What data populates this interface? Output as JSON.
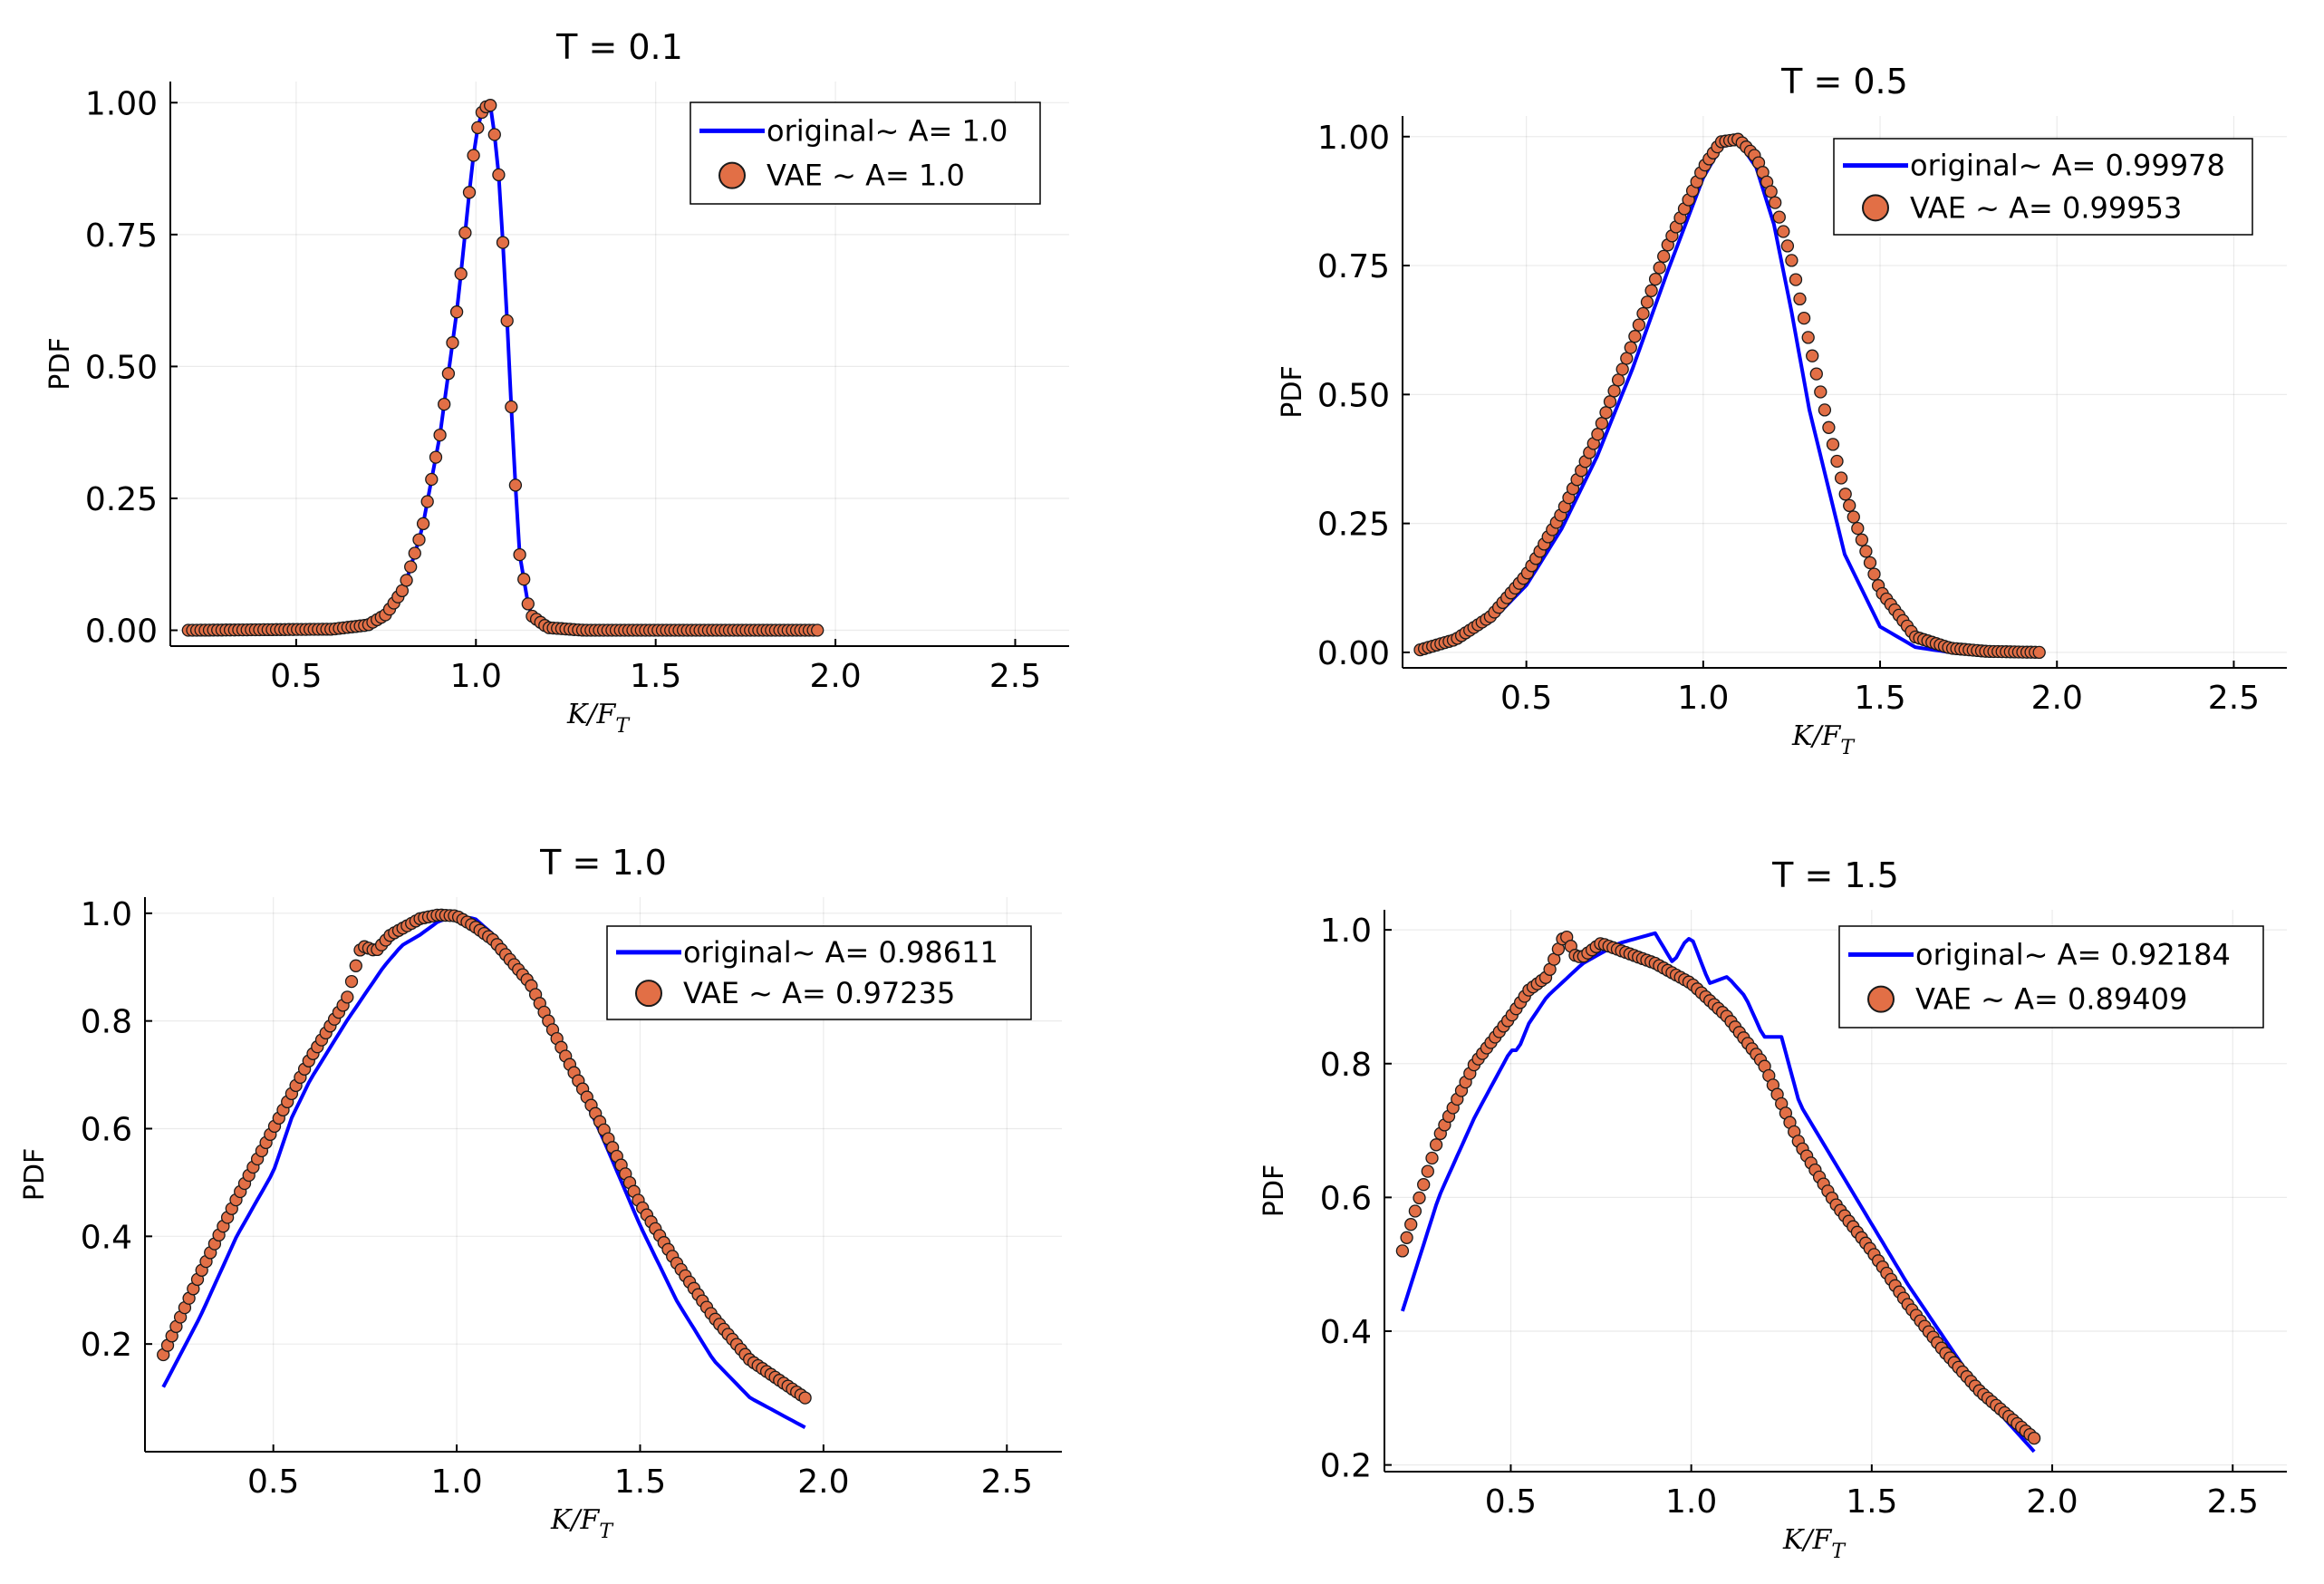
{
  "colors": {
    "original": "#0000ff",
    "vae": "#e26f46",
    "vae_edge": "#1a1a1a"
  },
  "chart_data": [
    {
      "type": "line",
      "title": "T = 0.1",
      "xlabel": "K/F",
      "xlabel_sub": "T",
      "ylabel": "PDF",
      "xlim": [
        0.15,
        2.65
      ],
      "ylim": [
        -0.03,
        1.04
      ],
      "xticks": [
        0.5,
        1.0,
        1.5,
        2.0,
        2.5
      ],
      "xtick_labels": [
        "0.5",
        "1.0",
        "1.5",
        "2.0",
        "2.5"
      ],
      "yticks": [
        0.0,
        0.25,
        0.5,
        0.75,
        1.0
      ],
      "ytick_labels": [
        "0.00",
        "0.25",
        "0.50",
        "0.75",
        "1.00"
      ],
      "legend_position": "top-right",
      "series": [
        {
          "name": "original~ A= 1.0",
          "kind": "line",
          "x": [
            0.2,
            0.6,
            0.7,
            0.75,
            0.8,
            0.85,
            0.9,
            0.95,
            0.98,
            1.0,
            1.02,
            1.04,
            1.06,
            1.08,
            1.1,
            1.12,
            1.15,
            1.2,
            1.3,
            1.95
          ],
          "y": [
            0.0,
            0.002,
            0.01,
            0.03,
            0.08,
            0.19,
            0.37,
            0.62,
            0.82,
            0.94,
            0.99,
            0.995,
            0.9,
            0.68,
            0.4,
            0.15,
            0.03,
            0.005,
            0.0,
            0.0
          ]
        },
        {
          "name": "VAE ~ A= 1.0",
          "kind": "scatter",
          "x": [
            0.2,
            0.6,
            0.7,
            0.75,
            0.8,
            0.85,
            0.9,
            0.95,
            0.98,
            1.0,
            1.02,
            1.04,
            1.06,
            1.08,
            1.1,
            1.12,
            1.15,
            1.2,
            1.3,
            1.95
          ],
          "y": [
            0.0,
            0.002,
            0.01,
            0.03,
            0.08,
            0.19,
            0.37,
            0.62,
            0.82,
            0.94,
            0.99,
            0.995,
            0.9,
            0.68,
            0.4,
            0.15,
            0.03,
            0.005,
            0.0,
            0.0
          ]
        }
      ]
    },
    {
      "type": "line",
      "title": "T = 0.5",
      "xlabel": "K/F",
      "xlabel_sub": "T",
      "ylabel": "PDF",
      "xlim": [
        0.15,
        2.65
      ],
      "ylim": [
        -0.03,
        1.04
      ],
      "xticks": [
        0.5,
        1.0,
        1.5,
        2.0,
        2.5
      ],
      "xtick_labels": [
        "0.5",
        "1.0",
        "1.5",
        "2.0",
        "2.5"
      ],
      "yticks": [
        0.0,
        0.25,
        0.5,
        0.75,
        1.0
      ],
      "ytick_labels": [
        "0.00",
        "0.25",
        "0.50",
        "0.75",
        "1.00"
      ],
      "legend_position": "top-right",
      "series": [
        {
          "name": "original~ A= 0.99978",
          "kind": "line",
          "x": [
            0.2,
            0.3,
            0.4,
            0.5,
            0.6,
            0.7,
            0.8,
            0.9,
            1.0,
            1.05,
            1.1,
            1.15,
            1.2,
            1.25,
            1.3,
            1.4,
            1.5,
            1.6,
            1.7
          ],
          "y": [
            0.005,
            0.02,
            0.06,
            0.13,
            0.24,
            0.38,
            0.55,
            0.74,
            0.92,
            0.98,
            0.99,
            0.94,
            0.83,
            0.66,
            0.47,
            0.19,
            0.05,
            0.01,
            0.0
          ]
        },
        {
          "name": "VAE ~ A= 0.99953",
          "kind": "scatter",
          "x": [
            0.2,
            0.3,
            0.4,
            0.5,
            0.6,
            0.7,
            0.8,
            0.9,
            1.0,
            1.05,
            1.1,
            1.15,
            1.2,
            1.25,
            1.3,
            1.35,
            1.4,
            1.5,
            1.6,
            1.7,
            1.8,
            1.95
          ],
          "y": [
            0.005,
            0.025,
            0.07,
            0.15,
            0.27,
            0.42,
            0.6,
            0.79,
            0.94,
            0.99,
            0.995,
            0.96,
            0.88,
            0.76,
            0.6,
            0.45,
            0.31,
            0.12,
            0.03,
            0.008,
            0.002,
            0.0
          ]
        }
      ]
    },
    {
      "type": "line",
      "title": "T = 1.0",
      "xlabel": "K/F",
      "xlabel_sub": "T",
      "ylabel": "PDF",
      "xlim": [
        0.15,
        2.65
      ],
      "ylim": [
        0.0,
        1.03
      ],
      "xticks": [
        0.5,
        1.0,
        1.5,
        2.0,
        2.5
      ],
      "xtick_labels": [
        "0.5",
        "1.0",
        "1.5",
        "2.0",
        "2.5"
      ],
      "yticks": [
        0.2,
        0.4,
        0.6,
        0.8,
        1.0
      ],
      "ytick_labels": [
        "0.2",
        "0.4",
        "0.6",
        "0.8",
        "1.0"
      ],
      "legend_position": "top-right",
      "series": [
        {
          "name": "original~ A= 0.98611",
          "kind": "line",
          "x": [
            0.2,
            0.3,
            0.4,
            0.5,
            0.55,
            0.6,
            0.7,
            0.8,
            0.85,
            0.9,
            0.95,
            1.0,
            1.05,
            1.1,
            1.15,
            1.2,
            1.3,
            1.4,
            1.5,
            1.6,
            1.7,
            1.8,
            1.95
          ],
          "y": [
            0.12,
            0.25,
            0.4,
            0.52,
            0.62,
            0.69,
            0.8,
            0.9,
            0.94,
            0.96,
            0.985,
            0.995,
            0.99,
            0.96,
            0.92,
            0.86,
            0.73,
            0.58,
            0.42,
            0.28,
            0.17,
            0.1,
            0.045
          ]
        },
        {
          "name": "VAE ~ A= 0.97235",
          "kind": "scatter",
          "x": [
            0.2,
            0.3,
            0.4,
            0.5,
            0.6,
            0.7,
            0.74,
            0.78,
            0.82,
            0.9,
            0.95,
            1.0,
            1.05,
            1.1,
            1.2,
            1.3,
            1.4,
            1.5,
            1.6,
            1.7,
            1.8,
            1.95
          ],
          "y": [
            0.18,
            0.33,
            0.47,
            0.6,
            0.73,
            0.84,
            0.94,
            0.93,
            0.96,
            0.99,
            0.997,
            0.995,
            0.975,
            0.95,
            0.87,
            0.73,
            0.6,
            0.46,
            0.35,
            0.25,
            0.17,
            0.1
          ]
        }
      ]
    },
    {
      "type": "line",
      "title": "T = 1.5",
      "xlabel": "K/F",
      "xlabel_sub": "T",
      "ylabel": "PDF",
      "xlim": [
        0.15,
        2.65
      ],
      "ylim": [
        0.19,
        1.03
      ],
      "xticks": [
        0.5,
        1.0,
        1.5,
        2.0,
        2.5
      ],
      "xtick_labels": [
        "0.5",
        "1.0",
        "1.5",
        "2.0",
        "2.5"
      ],
      "yticks": [
        0.2,
        0.4,
        0.6,
        0.8,
        1.0
      ],
      "ytick_labels": [
        "0.2",
        "0.4",
        "0.6",
        "0.8",
        "1.0"
      ],
      "legend_position": "top-right",
      "series": [
        {
          "name": "original~ A= 0.92184",
          "kind": "line",
          "x": [
            0.2,
            0.3,
            0.4,
            0.5,
            0.52,
            0.55,
            0.6,
            0.7,
            0.8,
            0.9,
            0.95,
            0.98,
            1.0,
            1.05,
            1.1,
            1.15,
            1.2,
            1.25,
            1.3,
            1.4,
            1.5,
            1.6,
            1.7,
            1.8,
            1.95
          ],
          "y": [
            0.43,
            0.6,
            0.72,
            0.82,
            0.82,
            0.86,
            0.9,
            0.95,
            0.98,
            0.995,
            0.95,
            0.98,
            0.99,
            0.92,
            0.93,
            0.9,
            0.84,
            0.84,
            0.74,
            0.65,
            0.56,
            0.47,
            0.39,
            0.31,
            0.22
          ]
        },
        {
          "name": "VAE ~ A= 0.89409",
          "kind": "scatter",
          "x": [
            0.2,
            0.3,
            0.4,
            0.5,
            0.55,
            0.6,
            0.65,
            0.68,
            0.7,
            0.75,
            0.8,
            0.85,
            0.9,
            1.0,
            1.1,
            1.2,
            1.3,
            1.4,
            1.5,
            1.6,
            1.7,
            1.8,
            1.95
          ],
          "y": [
            0.52,
            0.69,
            0.8,
            0.87,
            0.91,
            0.93,
            0.995,
            0.96,
            0.96,
            0.98,
            0.97,
            0.96,
            0.95,
            0.92,
            0.87,
            0.8,
            0.68,
            0.59,
            0.52,
            0.44,
            0.37,
            0.31,
            0.24
          ]
        }
      ]
    }
  ]
}
